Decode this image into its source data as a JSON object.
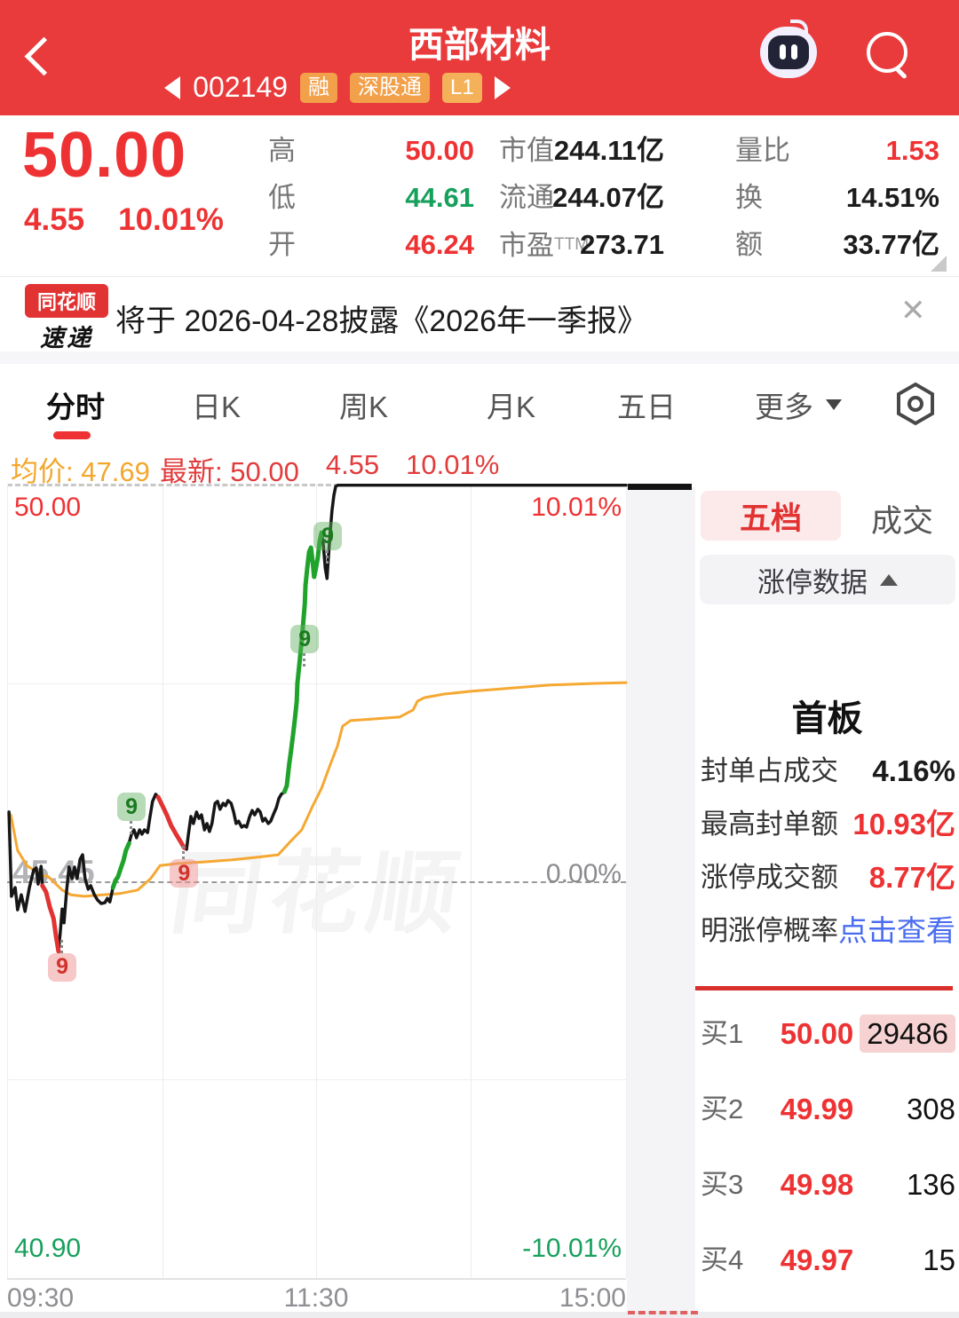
{
  "colors": {
    "header_red": "#e93a3c",
    "accent_red": "#ee3233",
    "down_red": "#e23333",
    "up_green": "#1fa32b",
    "value_green": "#17a05c",
    "avg_orange": "#f5a832",
    "link_blue": "#4a6cf0",
    "badge_orange": "#f2a04a",
    "panel_divider_red": "#d9302c"
  },
  "header": {
    "title": "西部材料",
    "code": "002149",
    "badges": [
      "融",
      "深股通",
      "L1"
    ]
  },
  "quote": {
    "price": "50.00",
    "change": "4.55",
    "change_pct": "10.01%",
    "stats_left": [
      {
        "label": "高",
        "value": "50.00"
      },
      {
        "label": "低",
        "value": "44.61"
      },
      {
        "label": "开",
        "value": "46.24"
      }
    ],
    "stats_mid": [
      {
        "label": "市值",
        "value": "244.11亿"
      },
      {
        "label": "流通",
        "value": "244.07亿"
      },
      {
        "label": "市盈",
        "sup": "TTM",
        "value": "273.71"
      }
    ],
    "stats_right": [
      {
        "label": "量比",
        "value": "1.53"
      },
      {
        "label": "换",
        "value": "14.51%"
      },
      {
        "label": "额",
        "value": "33.77亿"
      }
    ]
  },
  "news": {
    "logo_top": "同花顺",
    "logo_bottom": "速递",
    "text": "将于 2026-04-28披露《2026年一季报》",
    "close": "✕"
  },
  "tabs": {
    "items": [
      "分时",
      "日K",
      "周K",
      "月K",
      "五日",
      "更多"
    ],
    "active": "分时"
  },
  "info_row": {
    "avg_label": "均价:",
    "avg_value": "47.69",
    "latest_label": "最新:",
    "latest_price": "50.00",
    "latest_change": "4.55",
    "latest_pct": "10.01%"
  },
  "chart_data": {
    "type": "line",
    "title": "分时 (intraday time-share chart)",
    "x_ticks": [
      "09:30",
      "11:30",
      "15:00"
    ],
    "y_left_ticks": [
      "50.00",
      "45.45",
      "40.90"
    ],
    "y_right_ticks": [
      "10.01%",
      "0.00%",
      "-10.01%"
    ],
    "ylim_pct": [
      -10.01,
      10.01
    ],
    "prev_close": 45.45,
    "open": 46.24,
    "high": 50.0,
    "low": 44.61,
    "avg_price": 47.69,
    "watermark": "同花顺",
    "price_pct": [
      [
        0.003,
        1.75
      ],
      [
        0.007,
        -0.38
      ],
      [
        0.013,
        -0.16
      ],
      [
        0.017,
        -0.72
      ],
      [
        0.023,
        -0.34
      ],
      [
        0.029,
        -0.76
      ],
      [
        0.036,
        -0.16
      ],
      [
        0.043,
        0.29
      ],
      [
        0.047,
        0.34
      ],
      [
        0.05,
        -0.07
      ],
      [
        0.055,
        0.38
      ],
      [
        0.057,
        -0.11
      ],
      [
        0.063,
        -0.27
      ],
      [
        0.069,
        -0.65
      ],
      [
        0.075,
        -0.94
      ],
      [
        0.079,
        -1.39
      ],
      [
        0.083,
        -1.77
      ],
      [
        0.086,
        -1.28
      ],
      [
        0.089,
        -0.7
      ],
      [
        0.092,
        -1.05
      ],
      [
        0.096,
        -0.27
      ],
      [
        0.1,
        0.36
      ],
      [
        0.105,
        0.07
      ],
      [
        0.109,
        0.36
      ],
      [
        0.113,
        0.07
      ],
      [
        0.118,
        0.56
      ],
      [
        0.122,
        0.67
      ],
      [
        0.126,
        0.07
      ],
      [
        0.131,
        -0.2
      ],
      [
        0.135,
        -0.11
      ],
      [
        0.141,
        -0.34
      ],
      [
        0.146,
        -0.47
      ],
      [
        0.152,
        -0.56
      ],
      [
        0.158,
        -0.54
      ],
      [
        0.162,
        -0.43
      ],
      [
        0.166,
        -0.52
      ],
      [
        0.171,
        -0.16
      ],
      [
        0.175,
        0.02
      ],
      [
        0.179,
        0.11
      ],
      [
        0.184,
        0.34
      ],
      [
        0.188,
        0.52
      ],
      [
        0.192,
        0.78
      ],
      [
        0.197,
        0.96
      ],
      [
        0.201,
        1.19
      ],
      [
        0.205,
        1.3
      ],
      [
        0.209,
        1.1
      ],
      [
        0.214,
        1.3
      ],
      [
        0.218,
        1.19
      ],
      [
        0.222,
        1.3
      ],
      [
        0.227,
        1.23
      ],
      [
        0.231,
        1.64
      ],
      [
        0.235,
        2.02
      ],
      [
        0.24,
        2.2
      ],
      [
        0.244,
        2.13
      ],
      [
        0.251,
        1.91
      ],
      [
        0.258,
        1.68
      ],
      [
        0.265,
        1.41
      ],
      [
        0.273,
        1.19
      ],
      [
        0.28,
        1.01
      ],
      [
        0.286,
        0.85
      ],
      [
        0.29,
        0.81
      ],
      [
        0.293,
        1.19
      ],
      [
        0.297,
        1.64
      ],
      [
        0.301,
        1.46
      ],
      [
        0.306,
        1.75
      ],
      [
        0.31,
        1.59
      ],
      [
        0.314,
        1.68
      ],
      [
        0.319,
        1.3
      ],
      [
        0.323,
        1.46
      ],
      [
        0.327,
        1.26
      ],
      [
        0.331,
        1.46
      ],
      [
        0.336,
        1.97
      ],
      [
        0.34,
        2.02
      ],
      [
        0.344,
        1.82
      ],
      [
        0.349,
        1.97
      ],
      [
        0.353,
        1.91
      ],
      [
        0.357,
        2.04
      ],
      [
        0.362,
        1.97
      ],
      [
        0.366,
        1.75
      ],
      [
        0.37,
        1.46
      ],
      [
        0.374,
        1.52
      ],
      [
        0.379,
        1.37
      ],
      [
        0.383,
        1.41
      ],
      [
        0.387,
        1.37
      ],
      [
        0.392,
        1.64
      ],
      [
        0.396,
        1.79
      ],
      [
        0.4,
        1.68
      ],
      [
        0.405,
        1.82
      ],
      [
        0.409,
        1.75
      ],
      [
        0.413,
        1.52
      ],
      [
        0.417,
        1.59
      ],
      [
        0.422,
        1.46
      ],
      [
        0.426,
        1.52
      ],
      [
        0.43,
        1.68
      ],
      [
        0.435,
        1.86
      ],
      [
        0.439,
        2.09
      ],
      [
        0.443,
        2.2
      ],
      [
        0.448,
        2.26
      ],
      [
        0.452,
        2.42
      ],
      [
        0.456,
        2.98
      ],
      [
        0.459,
        3.32
      ],
      [
        0.462,
        3.7
      ],
      [
        0.465,
        4.1
      ],
      [
        0.468,
        4.55
      ],
      [
        0.469,
        5.0
      ],
      [
        0.472,
        5.45
      ],
      [
        0.475,
        5.94
      ],
      [
        0.478,
        6.46
      ],
      [
        0.481,
        7.02
      ],
      [
        0.482,
        7.47
      ],
      [
        0.485,
        7.91
      ],
      [
        0.488,
        8.32
      ],
      [
        0.491,
        8.43
      ],
      [
        0.494,
        8.03
      ],
      [
        0.496,
        7.69
      ],
      [
        0.499,
        7.91
      ],
      [
        0.502,
        8.18
      ],
      [
        0.505,
        8.59
      ],
      [
        0.508,
        8.81
      ],
      [
        0.511,
        8.48
      ],
      [
        0.514,
        7.91
      ],
      [
        0.517,
        7.65
      ],
      [
        0.519,
        8.14
      ],
      [
        0.522,
        8.81
      ],
      [
        0.525,
        9.37
      ],
      [
        0.528,
        9.75
      ],
      [
        0.531,
        9.98
      ],
      [
        0.535,
        10.01
      ],
      [
        1.0,
        10.01
      ]
    ],
    "avg_pct": [
      [
        0.006,
        1.68
      ],
      [
        0.017,
        0.78
      ],
      [
        0.032,
        0.4
      ],
      [
        0.053,
        0.18
      ],
      [
        0.067,
        0.11
      ],
      [
        0.077,
        -0.04
      ],
      [
        0.089,
        -0.22
      ],
      [
        0.103,
        -0.34
      ],
      [
        0.125,
        -0.38
      ],
      [
        0.154,
        -0.34
      ],
      [
        0.182,
        -0.31
      ],
      [
        0.211,
        -0.22
      ],
      [
        0.232,
        0.07
      ],
      [
        0.247,
        0.4
      ],
      [
        0.276,
        0.45
      ],
      [
        0.319,
        0.49
      ],
      [
        0.362,
        0.54
      ],
      [
        0.405,
        0.61
      ],
      [
        0.438,
        0.67
      ],
      [
        0.455,
        0.96
      ],
      [
        0.476,
        1.3
      ],
      [
        0.494,
        1.91
      ],
      [
        0.508,
        2.35
      ],
      [
        0.522,
        2.94
      ],
      [
        0.534,
        3.43
      ],
      [
        0.542,
        3.92
      ],
      [
        0.555,
        4.06
      ],
      [
        0.591,
        4.1
      ],
      [
        0.634,
        4.15
      ],
      [
        0.656,
        4.33
      ],
      [
        0.663,
        4.55
      ],
      [
        0.674,
        4.64
      ],
      [
        0.706,
        4.73
      ],
      [
        0.749,
        4.8
      ],
      [
        0.806,
        4.87
      ],
      [
        0.878,
        4.96
      ],
      [
        0.95,
        5.0
      ],
      [
        1.0,
        5.02
      ]
    ],
    "colored_segments": [
      {
        "color": "down",
        "points": [
          [
            0.057,
            -0.11
          ],
          [
            0.063,
            -0.27
          ],
          [
            0.069,
            -0.65
          ],
          [
            0.075,
            -0.94
          ],
          [
            0.079,
            -1.39
          ],
          [
            0.083,
            -1.77
          ]
        ]
      },
      {
        "color": "up",
        "points": [
          [
            0.171,
            -0.16
          ],
          [
            0.175,
            0.02
          ],
          [
            0.179,
            0.11
          ],
          [
            0.184,
            0.34
          ],
          [
            0.188,
            0.52
          ],
          [
            0.192,
            0.78
          ],
          [
            0.197,
            0.96
          ]
        ]
      },
      {
        "color": "down",
        "points": [
          [
            0.244,
            2.13
          ],
          [
            0.251,
            1.91
          ],
          [
            0.258,
            1.68
          ],
          [
            0.265,
            1.41
          ],
          [
            0.273,
            1.19
          ],
          [
            0.28,
            1.01
          ],
          [
            0.286,
            0.85
          ]
        ]
      },
      {
        "color": "up",
        "points": [
          [
            0.448,
            2.26
          ],
          [
            0.452,
            2.42
          ],
          [
            0.456,
            2.98
          ],
          [
            0.459,
            3.32
          ],
          [
            0.462,
            3.7
          ],
          [
            0.465,
            4.1
          ],
          [
            0.468,
            4.55
          ],
          [
            0.469,
            5.0
          ],
          [
            0.472,
            5.45
          ],
          [
            0.475,
            5.94
          ],
          [
            0.478,
            6.46
          ],
          [
            0.481,
            7.02
          ],
          [
            0.482,
            7.47
          ],
          [
            0.485,
            7.91
          ],
          [
            0.488,
            8.32
          ],
          [
            0.491,
            8.43
          ],
          [
            0.494,
            8.03
          ],
          [
            0.496,
            7.69
          ],
          [
            0.499,
            7.91
          ],
          [
            0.502,
            8.18
          ],
          [
            0.505,
            8.59
          ],
          [
            0.508,
            8.81
          ]
        ]
      }
    ],
    "markers": [
      {
        "x": 0.089,
        "pct": -2.17,
        "label": "9",
        "type": "down",
        "tail": "top"
      },
      {
        "x": 0.201,
        "pct": 1.88,
        "label": "9",
        "type": "up",
        "tail": "bottom"
      },
      {
        "x": 0.286,
        "pct": 0.2,
        "label": "9",
        "type": "down",
        "tail": "top"
      },
      {
        "x": 0.481,
        "pct": 6.12,
        "label": "9",
        "type": "up",
        "tail": "bottom"
      },
      {
        "x": 0.518,
        "pct": 8.72,
        "label": "9",
        "type": "up",
        "tail": "bottom"
      }
    ]
  },
  "panel": {
    "tabs": [
      "五档",
      "成交"
    ],
    "active": "五档",
    "collapse_label": "涨停数据",
    "board_label": "首板",
    "stats": [
      {
        "label": "封单占成交",
        "value": "4.16%",
        "color": "black"
      },
      {
        "label": "最高封单额",
        "value": "10.93亿",
        "color": "red"
      },
      {
        "label": "涨停成交额",
        "value": "8.77亿",
        "color": "red"
      },
      {
        "label": "明涨停概率",
        "value": "点击查看",
        "color": "blue"
      }
    ],
    "orders": [
      {
        "label": "买1",
        "price": "50.00",
        "qty": "29486",
        "highlight": true
      },
      {
        "label": "买2",
        "price": "49.99",
        "qty": "308",
        "highlight": false
      },
      {
        "label": "买3",
        "price": "49.98",
        "qty": "136",
        "highlight": false
      },
      {
        "label": "买4",
        "price": "49.97",
        "qty": "15",
        "highlight": false
      }
    ]
  }
}
